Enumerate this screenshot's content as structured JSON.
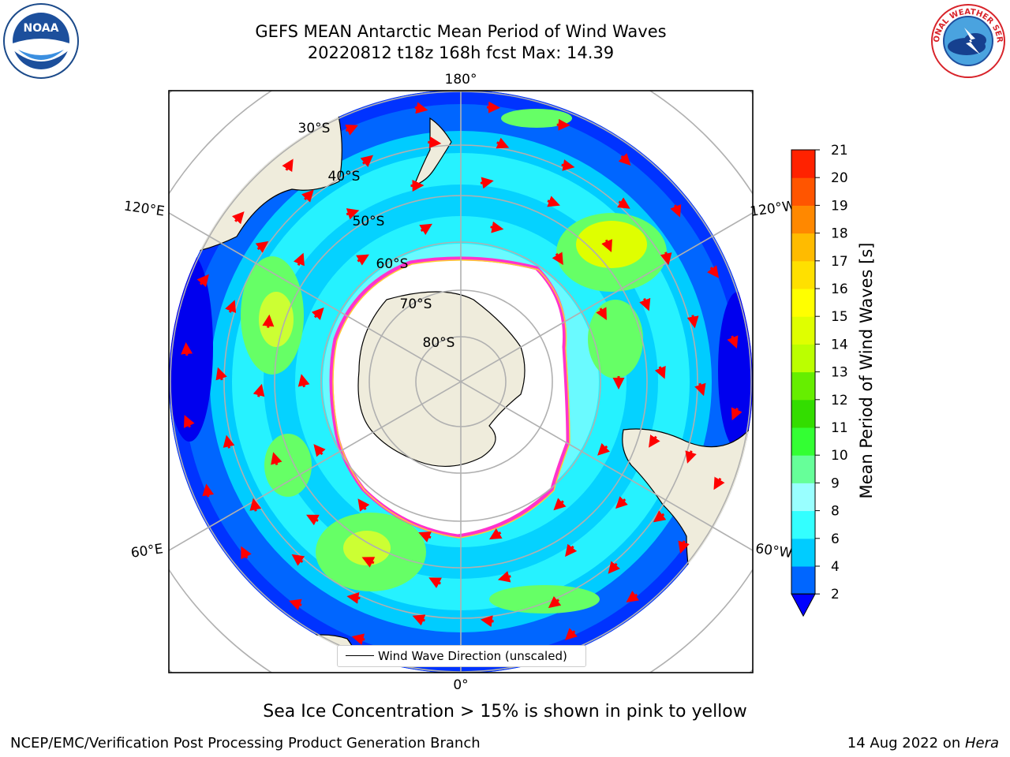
{
  "header": {
    "title_line1": "GEFS MEAN Antarctic Mean Period of Wind Waves",
    "title_line2": "20220812 t18z 168h fcst   Max: 14.39"
  },
  "map": {
    "projection": "south polar stereographic",
    "meridian_labels": [
      "180°",
      "120°E",
      "120°W",
      "60°E",
      "60°W",
      "0°"
    ],
    "parallel_labels": [
      "30°S",
      "40°S",
      "50°S",
      "60°S",
      "70°S",
      "80°S"
    ],
    "legend_text": "Wind Wave Direction (unscaled)",
    "arrow_color": "#ff0000",
    "ocean_color": "#0040ff",
    "land_color": "#efecdc",
    "ice_edge_color": "#ff33cc"
  },
  "colorbar": {
    "title": "Mean Period of Wind Waves [s]",
    "ticks": [
      "2",
      "4",
      "6",
      "8",
      "9",
      "10",
      "11",
      "12",
      "13",
      "14",
      "15",
      "16",
      "17",
      "18",
      "19",
      "20",
      "21"
    ],
    "colors": [
      "#0066ff",
      "#00ccff",
      "#33ffff",
      "#99ffff",
      "#66ff99",
      "#33ff33",
      "#33dd00",
      "#66ee00",
      "#bbff00",
      "#dfff00",
      "#ffff00",
      "#ffe000",
      "#ffbb00",
      "#ff8800",
      "#ff5500",
      "#ff2200"
    ],
    "under_color": "#0000ff"
  },
  "note": "Sea Ice Concentration > 15% is shown in pink to yellow",
  "footer": {
    "left": "NCEP/EMC/Verification Post Processing Product Generation Branch",
    "right_date": "14 Aug 2022 on ",
    "right_host": "Hera"
  },
  "logos": {
    "left": "NOAA",
    "right": "NATIONAL WEATHER SERVICE"
  }
}
